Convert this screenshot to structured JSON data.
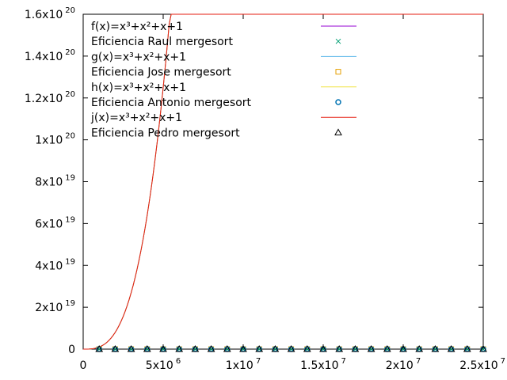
{
  "chart_data": {
    "type": "line",
    "title": "",
    "xlabel": "",
    "ylabel": "",
    "xlim": [
      0,
      25000000
    ],
    "ylim": [
      0,
      1.6e+20
    ],
    "grid": false,
    "legend_position": "top-left",
    "x_ticks": [
      {
        "value": 0,
        "mant": "0",
        "exp": ""
      },
      {
        "value": 5000000,
        "mant": "5x10",
        "exp": "6"
      },
      {
        "value": 10000000,
        "mant": "1x10",
        "exp": "7"
      },
      {
        "value": 15000000,
        "mant": "1.5x10",
        "exp": "7"
      },
      {
        "value": 20000000,
        "mant": "2x10",
        "exp": "7"
      },
      {
        "value": 25000000,
        "mant": "2.5x10",
        "exp": "7"
      }
    ],
    "y_ticks": [
      {
        "value": 0,
        "mant": "0",
        "exp": ""
      },
      {
        "value": 2e+19,
        "mant": "2x10",
        "exp": "19"
      },
      {
        "value": 4e+19,
        "mant": "4x10",
        "exp": "19"
      },
      {
        "value": 6e+19,
        "mant": "6x10",
        "exp": "19"
      },
      {
        "value": 8e+19,
        "mant": "8x10",
        "exp": "19"
      },
      {
        "value": 1e+20,
        "mant": "1x10",
        "exp": "20"
      },
      {
        "value": 1.2e+20,
        "mant": "1.2x10",
        "exp": "20"
      },
      {
        "value": 1.4e+20,
        "mant": "1.4x10",
        "exp": "20"
      },
      {
        "value": 1.6e+20,
        "mant": "1.6x10",
        "exp": "20"
      }
    ],
    "sample_x": [
      1000000,
      2000000,
      3000000,
      4000000,
      5000000,
      6000000,
      7000000,
      8000000,
      9000000,
      10000000,
      11000000,
      12000000,
      13000000,
      14000000,
      15000000,
      16000000,
      17000000,
      18000000,
      19000000,
      20000000,
      21000000,
      22000000,
      23000000,
      24000000,
      25000000
    ],
    "series": [
      {
        "name": "f(x)=x³+x²+x+1",
        "kind": "line",
        "color": "#9400d3",
        "function": "cubic"
      },
      {
        "name": "Eficiencia Raul mergesort",
        "kind": "points",
        "marker": "cross",
        "color": "#009e73",
        "value": 0
      },
      {
        "name": "g(x)=x³+x²+x+1",
        "kind": "line",
        "color": "#56b4e9",
        "function": "cubic"
      },
      {
        "name": "Eficiencia Jose mergesort",
        "kind": "points",
        "marker": "square",
        "color": "#e69f00",
        "value": 0
      },
      {
        "name": "h(x)=x³+x²+x+1",
        "kind": "line",
        "color": "#f0e442",
        "function": "cubic"
      },
      {
        "name": "Eficiencia Antonio mergesort",
        "kind": "points",
        "marker": "circle",
        "color": "#0072b2",
        "value": 0
      },
      {
        "name": "j(x)=x³+x²+x+1",
        "kind": "line",
        "color": "#e51e10",
        "function": "cubic"
      },
      {
        "name": "Eficiencia Pedro mergesort",
        "kind": "points",
        "marker": "triangle",
        "color": "#000000",
        "value": 0
      }
    ]
  }
}
